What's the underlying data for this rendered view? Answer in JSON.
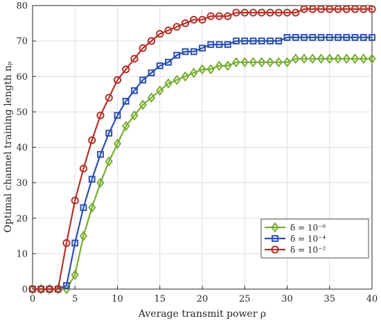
{
  "chart_data": {
    "type": "line",
    "xlabel": "Average transmit power ρ",
    "ylabel": "Optimal channel training length nₚ",
    "xlim": [
      0,
      40
    ],
    "ylim": [
      0,
      80
    ],
    "xticks": [
      "0",
      "5",
      "10",
      "15",
      "20",
      "25",
      "30",
      "35",
      "40"
    ],
    "yticks": [
      "0",
      "10",
      "20",
      "30",
      "40",
      "50",
      "60",
      "70",
      "80"
    ],
    "grid": true,
    "legend_position": "bottom-right",
    "x": [
      0,
      1,
      2,
      3,
      4,
      5,
      6,
      7,
      8,
      9,
      10,
      11,
      12,
      13,
      14,
      15,
      16,
      17,
      18,
      19,
      20,
      21,
      22,
      23,
      24,
      25,
      26,
      27,
      28,
      29,
      30,
      31,
      32,
      33,
      34,
      35,
      36,
      37,
      38,
      39,
      40
    ],
    "series": [
      {
        "name": "δ = 10⁻⁶",
        "color": "#77ac30",
        "marker": "diamond",
        "values": [
          0,
          0,
          0,
          0,
          0,
          4,
          15,
          23,
          30,
          36,
          41,
          46,
          49,
          52,
          54,
          56,
          58,
          59,
          60,
          61,
          62,
          62,
          63,
          63,
          64,
          64,
          64,
          64,
          64,
          64,
          64,
          65,
          65,
          65,
          65,
          65,
          65,
          65,
          65,
          65,
          65
        ]
      },
      {
        "name": "δ = 10⁻⁴",
        "color": "#2b4fae",
        "marker": "square",
        "values": [
          0,
          0,
          0,
          0,
          1,
          13,
          23,
          31,
          38,
          44,
          49,
          53,
          56,
          59,
          61,
          63,
          64,
          66,
          67,
          67,
          68,
          69,
          69,
          69,
          70,
          70,
          70,
          70,
          70,
          70,
          71,
          71,
          71,
          71,
          71,
          71,
          71,
          71,
          71,
          71,
          71
        ]
      },
      {
        "name": "δ = 10⁻²",
        "color": "#b5312a",
        "marker": "circle",
        "values": [
          0,
          0,
          0,
          0,
          13,
          25,
          34,
          42,
          49,
          54,
          59,
          62,
          65,
          68,
          70,
          72,
          73,
          74,
          75,
          76,
          76,
          77,
          77,
          77,
          78,
          78,
          78,
          78,
          78,
          78,
          78,
          78,
          79,
          79,
          79,
          79,
          79,
          79,
          79,
          79,
          79
        ]
      }
    ]
  }
}
